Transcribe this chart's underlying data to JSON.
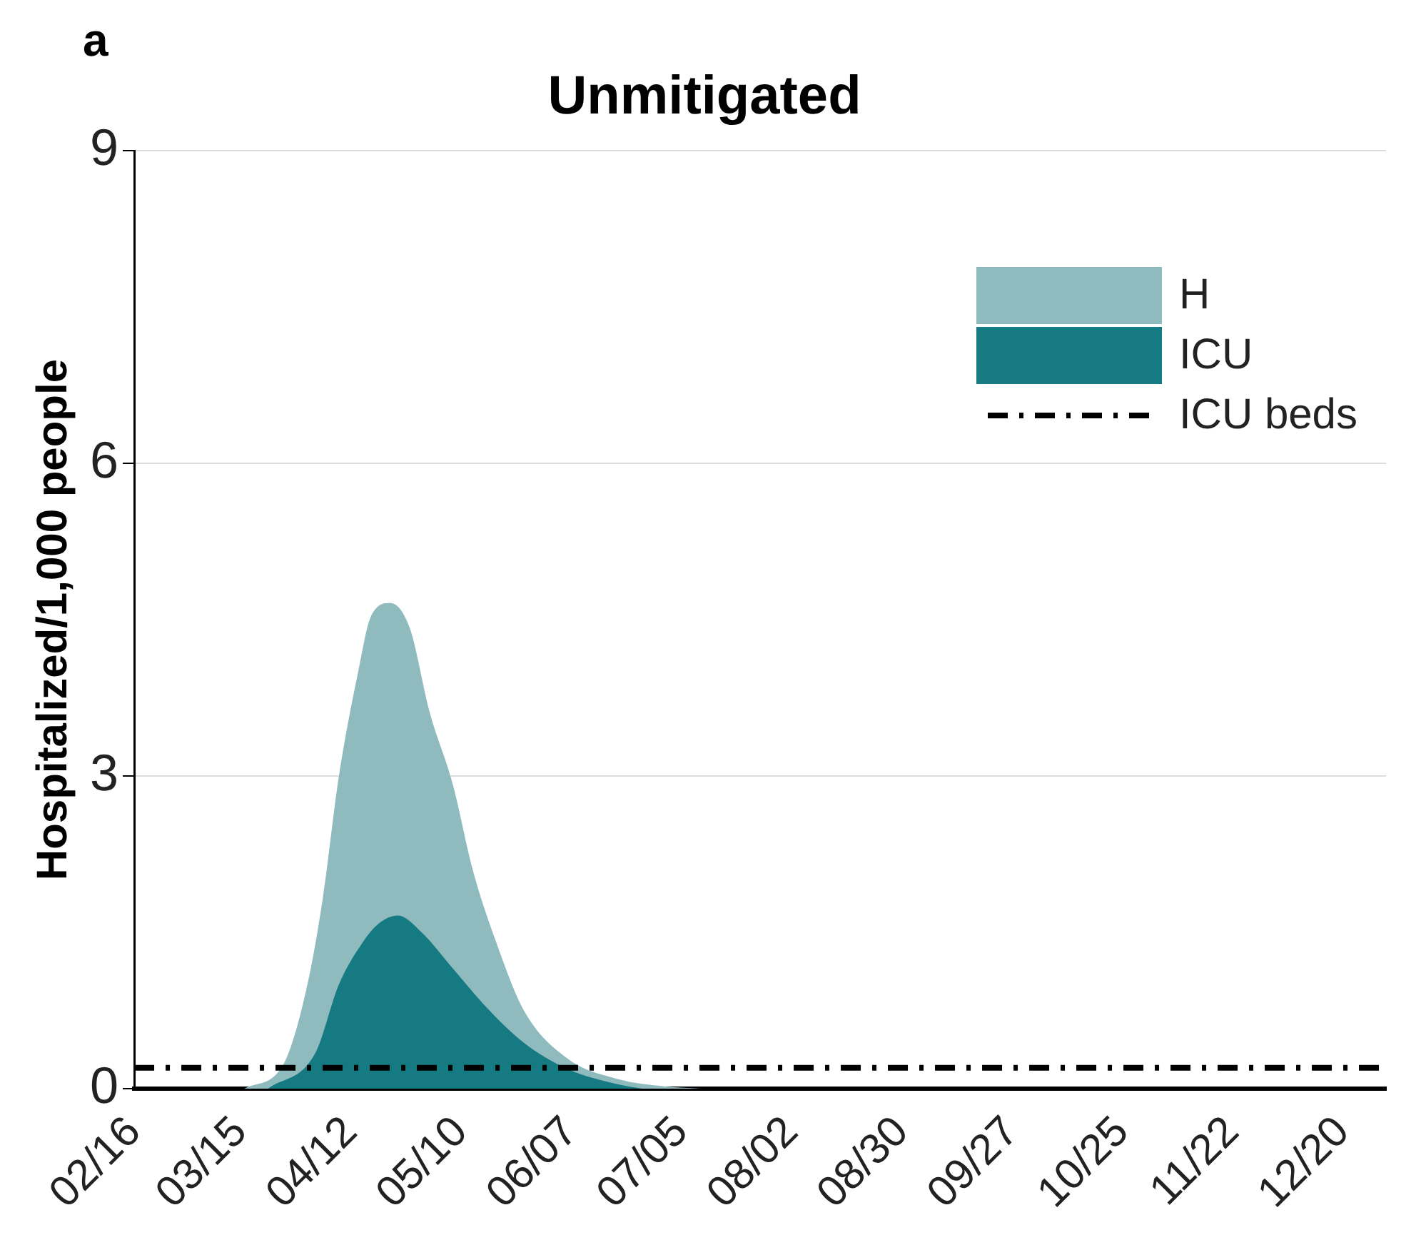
{
  "chart_data": {
    "type": "area",
    "title": "Unmitigated",
    "ylabel": "Hospitalized/1,000 people",
    "annotations": [
      "a"
    ],
    "series": [
      {
        "name": "H",
        "color": "#8fbbbf",
        "x": [
          "--03-16",
          "--03-26",
          "--04-01",
          "--04-05",
          "--04-09",
          "--04-14",
          "--04-17",
          "--04-22",
          "--04-27",
          "--05-02",
          "--05-08",
          "--05-13",
          "--05-19",
          "--05-26",
          "--06-06",
          "--06-19",
          "--07-01",
          "--07-10"
        ],
        "values": [
          0,
          0.24,
          1.0,
          1.85,
          3.0,
          4.02,
          4.52,
          4.66,
          4.42,
          3.62,
          2.91,
          2.1,
          1.4,
          0.75,
          0.29,
          0.09,
          0.02,
          0
        ]
      },
      {
        "name": "ICU",
        "color": "#157a81",
        "x": [
          "--03-22",
          "--04-03",
          "--04-09",
          "--04-15",
          "--04-19",
          "--04-24",
          "--04-30",
          "--05-08",
          "--05-16",
          "--05-26",
          "--06-06",
          "--06-19",
          "--06-25"
        ],
        "values": [
          0,
          0.34,
          1.0,
          1.4,
          1.58,
          1.66,
          1.5,
          1.15,
          0.8,
          0.44,
          0.19,
          0.04,
          0
        ]
      }
    ],
    "ref_lines": [
      {
        "axis": "y",
        "value": 0.2,
        "label": "ICU beds",
        "color": "#000000",
        "line_style": "dashdot"
      }
    ],
    "xlim": [
      "--02-16",
      "--12-31"
    ],
    "xticks": [
      {
        "value": "--02-16",
        "label": "02/16"
      },
      {
        "value": "--03-15",
        "label": "03/15"
      },
      {
        "value": "--04-12",
        "label": "04/12"
      },
      {
        "value": "--05-10",
        "label": "05/10"
      },
      {
        "value": "--06-07",
        "label": "06/07"
      },
      {
        "value": "--07-05",
        "label": "07/05"
      },
      {
        "value": "--08-02",
        "label": "08/02"
      },
      {
        "value": "--08-30",
        "label": "08/30"
      },
      {
        "value": "--09-27",
        "label": "09/27"
      },
      {
        "value": "--10-25",
        "label": "10/25"
      },
      {
        "value": "--11-22",
        "label": "11/22"
      },
      {
        "value": "--12-20",
        "label": "12/20"
      }
    ],
    "ylim": [
      0,
      9
    ],
    "yticks": [
      0,
      3,
      6,
      9
    ],
    "grid": "y",
    "legend": "top right"
  }
}
